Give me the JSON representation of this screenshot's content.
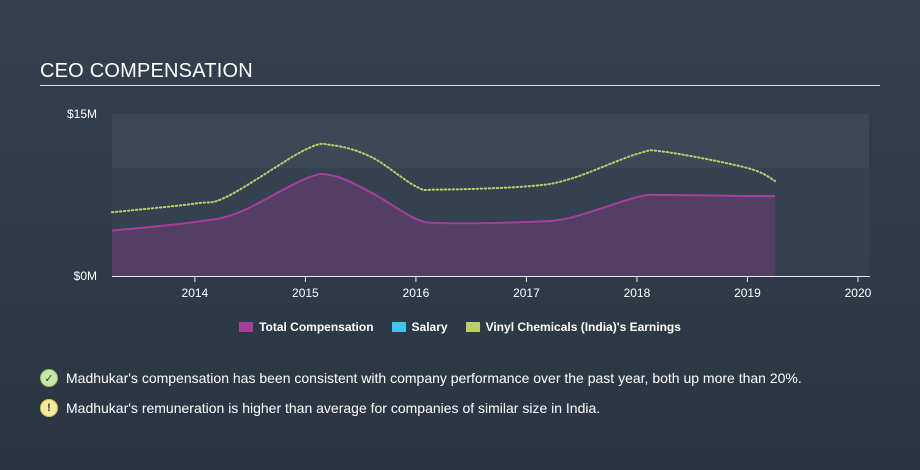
{
  "header": {
    "title": "CEO COMPENSATION"
  },
  "colors": {
    "total_compensation": "#a73d9b",
    "salary": "#3ec6f0",
    "earnings": "#b8cf6a",
    "plot_bg": "#344150",
    "plot_band": "#3b4856"
  },
  "chart_data": {
    "type": "area",
    "title": "CEO COMPENSATION",
    "xlabel": "",
    "ylabel": "",
    "xlim": [
      2013.25,
      2020.1
    ],
    "ylim": [
      0,
      15
    ],
    "y_unit": "$M",
    "y_ticks": [
      {
        "value": 0,
        "label": "$0M"
      },
      {
        "value": 15,
        "label": "$15M"
      }
    ],
    "x_ticks": [
      {
        "value": 2014,
        "label": "2014"
      },
      {
        "value": 2015,
        "label": "2015"
      },
      {
        "value": 2016,
        "label": "2016"
      },
      {
        "value": 2017,
        "label": "2017"
      },
      {
        "value": 2018,
        "label": "2018"
      },
      {
        "value": 2019,
        "label": "2019"
      },
      {
        "value": 2020,
        "label": "2020"
      }
    ],
    "series": [
      {
        "name": "Total Compensation",
        "style": "area",
        "x": [
          2013.25,
          2014.0,
          2014.4,
          2015.0,
          2015.25,
          2015.6,
          2016.0,
          2016.25,
          2017.0,
          2017.4,
          2018.0,
          2018.25,
          2019.0,
          2019.25
        ],
        "values": [
          4.2,
          5.0,
          5.9,
          9.0,
          9.3,
          7.7,
          5.3,
          4.9,
          5.0,
          5.4,
          7.3,
          7.5,
          7.4,
          7.4
        ]
      },
      {
        "name": "Salary",
        "style": "area",
        "x": [],
        "values": []
      },
      {
        "name": "Vinyl Chemicals (India)'s Earnings",
        "style": "dotted-line",
        "x": [
          2013.25,
          2014.0,
          2014.3,
          2015.0,
          2015.25,
          2015.6,
          2016.0,
          2016.2,
          2017.0,
          2017.4,
          2018.0,
          2018.25,
          2019.0,
          2019.25
        ],
        "values": [
          5.9,
          6.7,
          7.4,
          11.7,
          12.1,
          11.0,
          8.3,
          8.0,
          8.3,
          9.0,
          11.3,
          11.5,
          10.0,
          8.8
        ]
      }
    ]
  },
  "legend": {
    "total_compensation": "Total Compensation",
    "salary": "Salary",
    "earnings": "Vinyl Chemicals (India)'s Earnings"
  },
  "notes": [
    {
      "status": "check",
      "text": "Madhukar's compensation has been consistent with company performance over the past year, both up more than 20%."
    },
    {
      "status": "warning",
      "text": "Madhukar's remuneration is higher than average for companies of similar size in India."
    }
  ]
}
